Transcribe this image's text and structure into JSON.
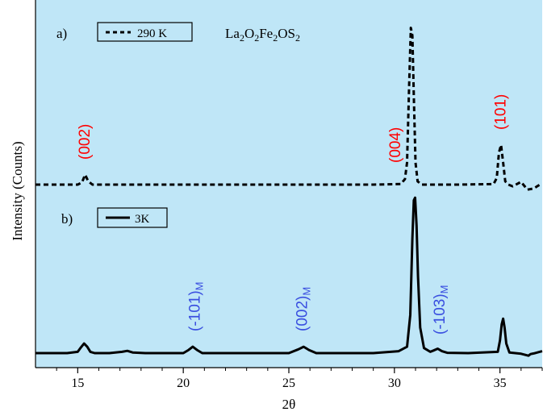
{
  "chart_data": {
    "type": "line",
    "xlabel": "2θ",
    "ylabel": "Intensity (Counts)",
    "xlim": [
      13,
      37
    ],
    "xticks": [
      15,
      20,
      25,
      30,
      35
    ],
    "xtick_labels": [
      "15",
      "20",
      "25",
      "30",
      "35"
    ],
    "background": "#bfe6f7",
    "compound_parts": [
      {
        "t": "La",
        "sub": false
      },
      {
        "t": "2",
        "sub": true
      },
      {
        "t": "O",
        "sub": false
      },
      {
        "t": "2",
        "sub": true
      },
      {
        "t": "Fe",
        "sub": false
      },
      {
        "t": "2",
        "sub": true
      },
      {
        "t": "OS",
        "sub": false
      },
      {
        "t": "2",
        "sub": true
      }
    ],
    "series": [
      {
        "name": "290 K",
        "panel_label": "a)",
        "style": "dashed",
        "color": "#000000",
        "x": [
          13.0,
          15.0,
          15.2,
          15.35,
          15.5,
          15.7,
          17.0,
          20.0,
          25.0,
          29.0,
          30.3,
          30.5,
          30.6,
          30.7,
          30.78,
          30.85,
          30.92,
          31.0,
          31.1,
          31.3,
          33.0,
          34.7,
          34.85,
          34.95,
          35.05,
          35.15,
          35.25,
          35.4,
          35.6,
          36.0,
          36.3,
          36.6,
          36.8,
          37.0
        ],
        "y": [
          0,
          0,
          0.2,
          0.9,
          0.3,
          0,
          0,
          0,
          0,
          0,
          0.05,
          0.5,
          2.0,
          9.0,
          14.2,
          13.5,
          8.0,
          2.0,
          0.3,
          0,
          0,
          0.05,
          0.6,
          2.9,
          3.6,
          2.0,
          0.3,
          0.0,
          -0.15,
          0.25,
          -0.45,
          -0.35,
          -0.1,
          0.1
        ]
      },
      {
        "name": "3K",
        "panel_label": "b)",
        "style": "solid",
        "color": "#000000",
        "x": [
          13.0,
          14.5,
          15.0,
          15.15,
          15.3,
          15.45,
          15.6,
          15.8,
          16.5,
          17.1,
          17.35,
          17.6,
          18.2,
          20.0,
          20.25,
          20.45,
          20.65,
          20.9,
          21.5,
          25.0,
          25.45,
          25.7,
          25.95,
          26.3,
          27.0,
          29.0,
          30.2,
          30.6,
          30.75,
          30.85,
          30.92,
          30.98,
          31.05,
          31.12,
          31.22,
          31.4,
          31.7,
          31.85,
          32.05,
          32.25,
          32.5,
          33.5,
          34.9,
          35.0,
          35.08,
          35.15,
          35.22,
          35.3,
          35.45,
          36.0,
          36.35,
          36.45,
          36.6,
          37.0
        ],
        "y": [
          0,
          0,
          0.2,
          0.9,
          1.5,
          1.0,
          0.2,
          0,
          0,
          0.2,
          0.35,
          0.1,
          0,
          0,
          0.5,
          1.0,
          0.5,
          0,
          0,
          0,
          0.6,
          1.0,
          0.5,
          0,
          0,
          0,
          0.3,
          1.0,
          6.0,
          18.0,
          24.0,
          24.4,
          20.0,
          12.0,
          4.0,
          0.8,
          0.2,
          0.4,
          0.7,
          0.3,
          0.05,
          0,
          0.2,
          2.0,
          4.5,
          5.4,
          4.0,
          1.5,
          0.1,
          -0.1,
          -0.4,
          -0.15,
          -0.05,
          0.3
        ]
      }
    ],
    "annotations": [
      {
        "text": "(002)",
        "x": 15.3,
        "color": "#ff0000",
        "panel": "a"
      },
      {
        "text": "(004)",
        "x": 30.0,
        "color": "#ff0000",
        "panel": "a"
      },
      {
        "text": "(101)",
        "x": 35.0,
        "color": "#ff0000",
        "panel": "a"
      },
      {
        "text": "(-101)",
        "sub": "M",
        "x": 20.5,
        "color": "#3a4fe0",
        "panel": "b"
      },
      {
        "text": "(002)",
        "sub": "M",
        "x": 25.6,
        "color": "#3a4fe0",
        "panel": "b"
      },
      {
        "text": "(-103)",
        "sub": "M",
        "x": 32.1,
        "color": "#3a4fe0",
        "panel": "b"
      }
    ]
  }
}
